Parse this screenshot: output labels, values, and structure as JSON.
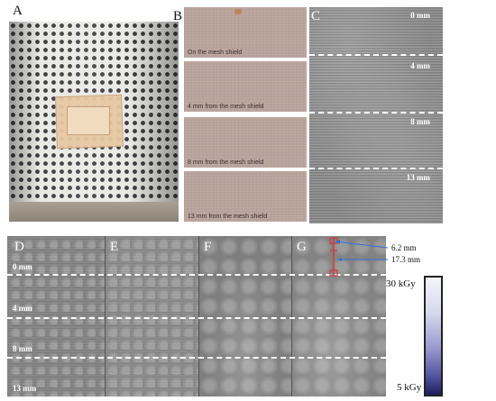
{
  "panels": {
    "A": "A",
    "B": "B",
    "C": "C",
    "D": "D",
    "E": "E",
    "F": "F",
    "G": "G"
  },
  "panel_b": {
    "strips": [
      "On the mesh shield",
      "4 mm from the mesh shield",
      "8 mm from the mesh shield",
      "13 mm from the mesh shield"
    ]
  },
  "panel_c": {
    "labels": [
      "0 mm",
      "4 mm",
      "8 mm",
      "13 mm"
    ]
  },
  "panel_dg": {
    "labels": [
      "0 mm",
      "4 mm",
      "8 mm",
      "13 mm"
    ]
  },
  "annotation": {
    "depth_1": "6.2 mm",
    "depth_2": "17.3 mm",
    "colors": {
      "marker": "#2f6fd6",
      "bracket": "#d23a3a"
    }
  },
  "colorbar": {
    "max_label": "30 kGy",
    "min_label": "5 kGy"
  }
}
